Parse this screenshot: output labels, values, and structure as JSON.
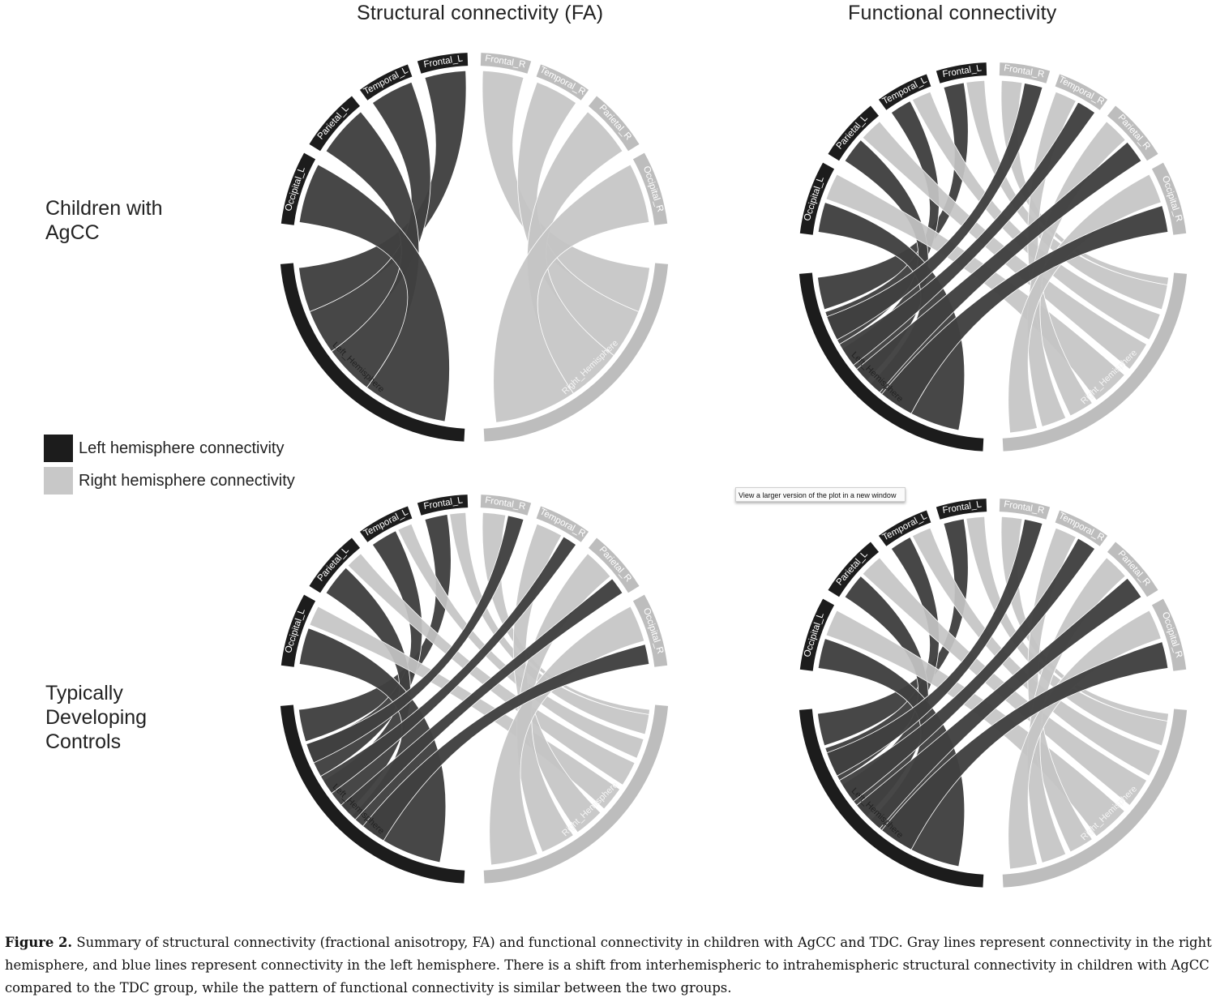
{
  "columns": {
    "structural_title": "Structural connectivity (FA)",
    "functional_title": "Functional connectivity"
  },
  "rows": {
    "agcc_line1": "Children with",
    "agcc_line2": "AgCC",
    "tdc_line1": "Typically",
    "tdc_line2": "Developing",
    "tdc_line3": "Controls"
  },
  "legend": {
    "left_label": "Left hemisphere connectivity",
    "right_label": "Right hemisphere connectivity",
    "left_color": "#1c1c1c",
    "right_color": "#c8c8c8"
  },
  "tooltip": "View a larger version of the plot in a new window",
  "region_labels": {
    "occipital_l": "Occipital_L",
    "parietal_l": "Parietal_L",
    "temporal_l": "Temporal_L",
    "frontal_l": "Frontal_L",
    "frontal_r": "Frontal_R",
    "temporal_r": "Temporal_R",
    "parietal_r": "Parietal_R",
    "occipital_r": "Occipital_R",
    "left_hemisphere": "Left_Hemisphere",
    "right_hemisphere": "Right_Hemisphere"
  },
  "caption": {
    "label": "Figure 2.",
    "text": " Summary of structural connectivity (fractional anisotropy, FA) and functional connectivity in children with AgCC and TDC. Gray lines represent connectivity in the right hemisphere, and blue lines represent connectivity in the left hemisphere. There is a shift from interhemispheric to intrahemispheric structural connectivity in children with AgCC compared to the TDC group, while the pattern of functional connectivity is similar between the two groups."
  },
  "colors": {
    "left_arc": "#1c1c1c",
    "right_arc": "#bdbdbd",
    "left_chord": "#3f3f3f",
    "right_chord": "#c4c4c4"
  }
}
